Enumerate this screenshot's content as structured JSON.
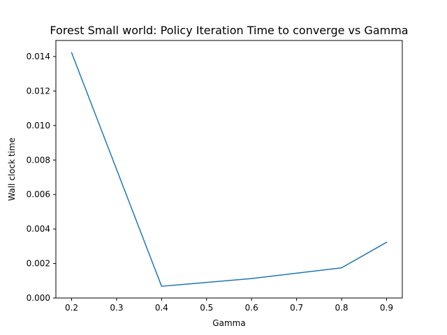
{
  "chart_data": {
    "type": "line",
    "title": "Forest Small world: Policy Iteration Time to converge vs Gamma",
    "xlabel": "Gamma",
    "ylabel": "Wall clock time",
    "x": [
      0.2,
      0.4,
      0.6,
      0.8,
      0.9
    ],
    "series": [
      {
        "values": [
          0.01422,
          0.00068,
          0.00113,
          0.00175,
          0.00323
        ],
        "color": "#1f77b4"
      }
    ],
    "xlim": [
      0.165,
      0.935
    ],
    "ylim": [
      0,
      0.01493
    ],
    "xticks": [
      0.2,
      0.3,
      0.4,
      0.5,
      0.6,
      0.7,
      0.8,
      0.9
    ],
    "xtick_labels": [
      "0.2",
      "0.3",
      "0.4",
      "0.5",
      "0.6",
      "0.7",
      "0.8",
      "0.9"
    ],
    "yticks": [
      0,
      0.002,
      0.004,
      0.006,
      0.008,
      0.01,
      0.012,
      0.014
    ],
    "ytick_labels": [
      "0.000",
      "0.002",
      "0.004",
      "0.006",
      "0.008",
      "0.010",
      "0.012",
      "0.014"
    ],
    "grid": false,
    "legend": "none"
  }
}
